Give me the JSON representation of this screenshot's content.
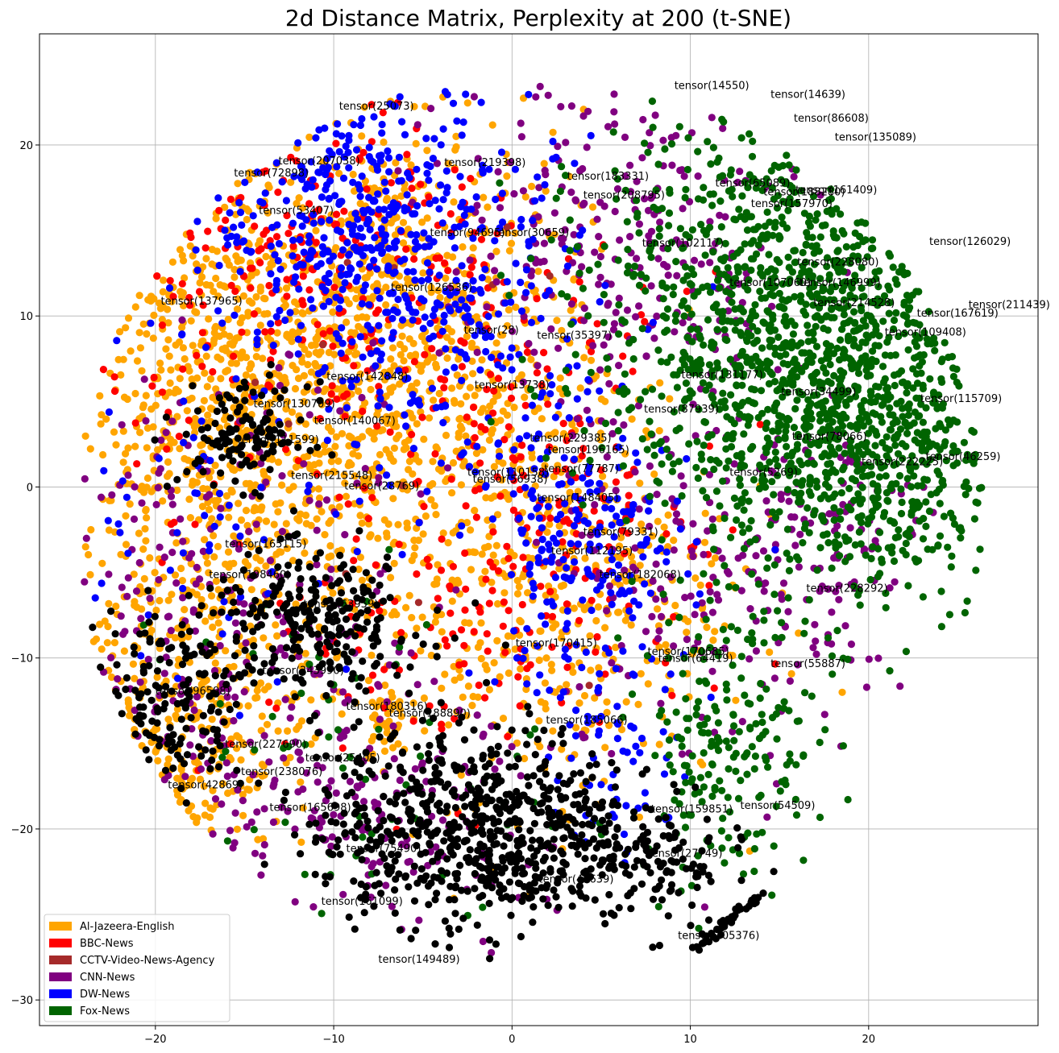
{
  "chart_data": {
    "type": "scatter",
    "title": "2d Distance Matrix, Perplexity at 200 (t-SNE)",
    "xlabel": "",
    "ylabel": "",
    "xlim": [
      -26.5,
      29.5
    ],
    "ylim": [
      -31.5,
      26.5
    ],
    "xticks": [
      -20,
      -10,
      0,
      10,
      20
    ],
    "yticks": [
      -30,
      -20,
      -10,
      0,
      10,
      20
    ],
    "grid": true,
    "legend_position": "lower-left",
    "series": [
      {
        "name": "Al-Jazeera-English",
        "color": "#ffa500"
      },
      {
        "name": "BBC-News",
        "color": "#ff0000"
      },
      {
        "name": "CCTV-Video-News-Agency",
        "color": "#a52a2a"
      },
      {
        "name": "CNN-News",
        "color": "#800080"
      },
      {
        "name": "DW-News",
        "color": "#0000ff"
      },
      {
        "name": "Fox-News",
        "color": "#006400"
      }
    ],
    "clusters": [
      {
        "series": "Al-Jazeera-English",
        "cx": -16,
        "cy": 4,
        "sx": 5.5,
        "sy": 9,
        "n": 900
      },
      {
        "series": "Al-Jazeera-English",
        "cx": -6,
        "cy": 8,
        "sx": 5,
        "sy": 7,
        "n": 700
      },
      {
        "series": "Al-Jazeera-English",
        "cx": 2,
        "cy": -6,
        "sx": 5,
        "sy": 6,
        "n": 450
      },
      {
        "series": "Al-Jazeera-English",
        "cx": -19,
        "cy": -14,
        "sx": 3,
        "sy": 4,
        "n": 220
      },
      {
        "series": "Al-Jazeera-English",
        "cx": -7,
        "cy": -13.5,
        "sx": 0.6,
        "sy": 1.0,
        "n": 40
      },
      {
        "series": "BBC-News",
        "cx": -11,
        "cy": 12,
        "sx": 6,
        "sy": 6,
        "n": 260
      },
      {
        "series": "BBC-News",
        "cx": 2,
        "cy": 0,
        "sx": 4,
        "sy": 6,
        "n": 180
      },
      {
        "series": "BBC-News",
        "cx": -5,
        "cy": -8,
        "sx": 6,
        "sy": 5,
        "n": 90
      },
      {
        "series": "CCTV-Video-News-Agency",
        "cx": -4,
        "cy": 0,
        "sx": 8,
        "sy": 10,
        "n": 12
      },
      {
        "series": "CNN-News",
        "cx": 6,
        "cy": 14,
        "sx": 5,
        "sy": 6,
        "n": 260
      },
      {
        "series": "CNN-News",
        "cx": -16,
        "cy": -10,
        "sx": 5,
        "sy": 8,
        "n": 260
      },
      {
        "series": "CNN-News",
        "cx": 10,
        "cy": -4,
        "sx": 4,
        "sy": 7,
        "n": 150
      },
      {
        "series": "CNN-News",
        "cx": 17,
        "cy": -3,
        "sx": 3,
        "sy": 4,
        "n": 120
      },
      {
        "series": "CNN-News",
        "cx": -8,
        "cy": -20,
        "sx": 5,
        "sy": 4,
        "n": 140
      },
      {
        "series": "DW-News",
        "cx": -9,
        "cy": 16,
        "sx": 4,
        "sy": 4,
        "n": 320
      },
      {
        "series": "DW-News",
        "cx": -3,
        "cy": 10,
        "sx": 4,
        "sy": 5,
        "n": 230
      },
      {
        "series": "DW-News",
        "cx": 4,
        "cy": -4,
        "sx": 3,
        "sy": 4,
        "n": 200
      },
      {
        "series": "DW-News",
        "cx": -16,
        "cy": 2,
        "sx": 5,
        "sy": 7,
        "n": 80
      },
      {
        "series": "DW-News",
        "cx": 6,
        "cy": -16,
        "sx": 2,
        "sy": 3,
        "n": 60
      },
      {
        "series": "Fox-News",
        "cx": 16,
        "cy": 10,
        "sx": 5.5,
        "sy": 6.5,
        "n": 1100
      },
      {
        "series": "Fox-News",
        "cx": 20,
        "cy": 2,
        "sx": 4,
        "sy": 5,
        "n": 500
      },
      {
        "series": "Fox-News",
        "cx": 12,
        "cy": -15,
        "sx": 2.5,
        "sy": 4,
        "n": 200
      },
      {
        "series": "Fox-News",
        "cx": -10,
        "cy": -16,
        "sx": 6,
        "sy": 6,
        "n": 60
      },
      {
        "series": "Black-Unlabeled",
        "cx": -2,
        "cy": -20,
        "sx": 4.5,
        "sy": 3,
        "n": 700
      },
      {
        "series": "Black-Unlabeled",
        "cx": -11,
        "cy": -8,
        "sx": 3,
        "sy": 2,
        "n": 260
      },
      {
        "series": "Black-Unlabeled",
        "cx": -15,
        "cy": 3,
        "sx": 1.8,
        "sy": 1.5,
        "n": 120
      },
      {
        "series": "Black-Unlabeled",
        "cx": -19,
        "cy": -13,
        "sx": 2,
        "sy": 3,
        "n": 150
      },
      {
        "series": "Black-Unlabeled",
        "cx": 7,
        "cy": -22,
        "sx": 3,
        "sy": 2,
        "n": 120
      }
    ],
    "annotations": [
      {
        "text": "tensor(14550)",
        "x": 9.1,
        "y": 23.5
      },
      {
        "text": "tensor(14639)",
        "x": 14.5,
        "y": 23.0
      },
      {
        "text": "tensor(25073)",
        "x": -9.7,
        "y": 22.3
      },
      {
        "text": "tensor(86608)",
        "x": 15.8,
        "y": 21.6
      },
      {
        "text": "tensor(135089)",
        "x": 18.1,
        "y": 20.5
      },
      {
        "text": "tensor(207038)",
        "x": -13.1,
        "y": 19.1
      },
      {
        "text": "tensor(219398)",
        "x": -3.8,
        "y": 19.0
      },
      {
        "text": "tensor(72898)",
        "x": -15.6,
        "y": 18.4
      },
      {
        "text": "tensor(183331)",
        "x": 3.1,
        "y": 18.2
      },
      {
        "text": "tensor(65089)",
        "x": 11.4,
        "y": 17.8
      },
      {
        "text": "tensor(188280)",
        "x": 14.1,
        "y": 17.3
      },
      {
        "text": "tensor(161409)",
        "x": 15.9,
        "y": 17.4
      },
      {
        "text": "tensor(208795)",
        "x": 4.0,
        "y": 17.1
      },
      {
        "text": "tensor(157970)",
        "x": 13.4,
        "y": 16.6
      },
      {
        "text": "tensor(53407)",
        "x": -14.2,
        "y": 16.2
      },
      {
        "text": "tensor(94695)",
        "x": -4.6,
        "y": 14.9
      },
      {
        "text": "tensor(30659)",
        "x": -1.0,
        "y": 14.9
      },
      {
        "text": "tensor(102117)",
        "x": 7.3,
        "y": 14.3
      },
      {
        "text": "tensor(126029)",
        "x": 23.4,
        "y": 14.4
      },
      {
        "text": "tensor(228080)",
        "x": 16.0,
        "y": 13.2
      },
      {
        "text": "tensor(107060)",
        "x": 12.2,
        "y": 12.0
      },
      {
        "text": "tensor(146999)",
        "x": 16.1,
        "y": 12.0
      },
      {
        "text": "tensor(126536)",
        "x": -6.8,
        "y": 11.7
      },
      {
        "text": "tensor(137965)",
        "x": -19.7,
        "y": 10.9
      },
      {
        "text": "tensor(214528)",
        "x": 16.9,
        "y": 10.8
      },
      {
        "text": "tensor(211439)",
        "x": 25.6,
        "y": 10.7
      },
      {
        "text": "tensor(167619)",
        "x": 22.7,
        "y": 10.2
      },
      {
        "text": "tensor(109408)",
        "x": 20.9,
        "y": 9.1
      },
      {
        "text": "tensor(28)",
        "x": -2.7,
        "y": 9.2
      },
      {
        "text": "tensor(35397)",
        "x": 1.4,
        "y": 8.9
      },
      {
        "text": "tensor(142848)",
        "x": -10.4,
        "y": 6.5
      },
      {
        "text": "tensor(131177)",
        "x": 9.5,
        "y": 6.6
      },
      {
        "text": "tensor(13738)",
        "x": -2.1,
        "y": 6.0
      },
      {
        "text": "tensor(34499)",
        "x": 15.1,
        "y": 5.6
      },
      {
        "text": "tensor(115709)",
        "x": 22.9,
        "y": 5.2
      },
      {
        "text": "tensor(130709)",
        "x": -14.5,
        "y": 4.9
      },
      {
        "text": "tensor(87939)",
        "x": 7.4,
        "y": 4.6
      },
      {
        "text": "tensor(140067)",
        "x": -11.1,
        "y": 3.9
      },
      {
        "text": "tensor(229385)",
        "x": 1.0,
        "y": 2.9
      },
      {
        "text": "tensor(78066)",
        "x": 15.7,
        "y": 3.0
      },
      {
        "text": "tensor(111599)",
        "x": -15.4,
        "y": 2.8
      },
      {
        "text": "tensor(196165)",
        "x": 2.0,
        "y": 2.2
      },
      {
        "text": "tensor(46259)",
        "x": 23.2,
        "y": 1.8
      },
      {
        "text": "tensor(222225)",
        "x": 19.6,
        "y": 1.5
      },
      {
        "text": "tensor(77787)",
        "x": 1.8,
        "y": 1.1
      },
      {
        "text": "tensor(110158)",
        "x": -2.5,
        "y": 0.9
      },
      {
        "text": "tensor(5269)",
        "x": 12.2,
        "y": 0.9
      },
      {
        "text": "tensor(215548)",
        "x": -12.4,
        "y": 0.7
      },
      {
        "text": "tensor(56938)",
        "x": -2.2,
        "y": 0.5
      },
      {
        "text": "tensor(28769)",
        "x": -9.4,
        "y": 0.1
      },
      {
        "text": "tensor(148405)",
        "x": 1.4,
        "y": -0.6
      },
      {
        "text": "tensor(79331)",
        "x": 4.0,
        "y": -2.6
      },
      {
        "text": "tensor(165115)",
        "x": -16.1,
        "y": -3.3
      },
      {
        "text": "tensor(112195)",
        "x": 2.2,
        "y": -3.7
      },
      {
        "text": "tensor(198460)",
        "x": -17.0,
        "y": -5.1
      },
      {
        "text": "tensor(182068)",
        "x": 4.9,
        "y": -5.1
      },
      {
        "text": "tensor(228292)",
        "x": 16.5,
        "y": -5.9
      },
      {
        "text": "tensor(63959)",
        "x": -11.7,
        "y": -6.8
      },
      {
        "text": "tensor(170415)",
        "x": 0.2,
        "y": -9.1
      },
      {
        "text": "tensor(170685)",
        "x": 7.6,
        "y": -9.6
      },
      {
        "text": "tensor(64419)",
        "x": 8.2,
        "y": -10.0
      },
      {
        "text": "tensor(55887)",
        "x": 14.5,
        "y": -10.3
      },
      {
        "text": "tensor(243990)",
        "x": -14.0,
        "y": -10.7
      },
      {
        "text": "tensor(96598)",
        "x": -20.0,
        "y": -11.9
      },
      {
        "text": "tensor(180316)",
        "x": -9.3,
        "y": -12.8
      },
      {
        "text": "tensor(188890)",
        "x": -6.9,
        "y": -13.2
      },
      {
        "text": "tensor(185066)",
        "x": 1.9,
        "y": -13.6
      },
      {
        "text": "tensor(227690)",
        "x": -16.1,
        "y": -15.0
      },
      {
        "text": "tensor(25405)",
        "x": -11.6,
        "y": -15.8
      },
      {
        "text": "tensor(238076)",
        "x": -15.2,
        "y": -16.6
      },
      {
        "text": "tensor(42869)",
        "x": -19.3,
        "y": -17.4
      },
      {
        "text": "tensor(165698)",
        "x": -13.6,
        "y": -18.7
      },
      {
        "text": "tensor(54509)",
        "x": 12.8,
        "y": -18.6
      },
      {
        "text": "tensor(159851)",
        "x": 7.8,
        "y": -18.8
      },
      {
        "text": "tensor(75490)",
        "x": -9.3,
        "y": -21.1
      },
      {
        "text": "tensor(27749)",
        "x": 7.6,
        "y": -21.4
      },
      {
        "text": "tensor(45639)",
        "x": 1.5,
        "y": -22.9
      },
      {
        "text": "tensor(161099)",
        "x": -10.7,
        "y": -24.2
      },
      {
        "text": "tensor(205376)",
        "x": 9.3,
        "y": -26.2
      },
      {
        "text": "tensor(149489)",
        "x": -7.5,
        "y": -27.6
      }
    ]
  }
}
